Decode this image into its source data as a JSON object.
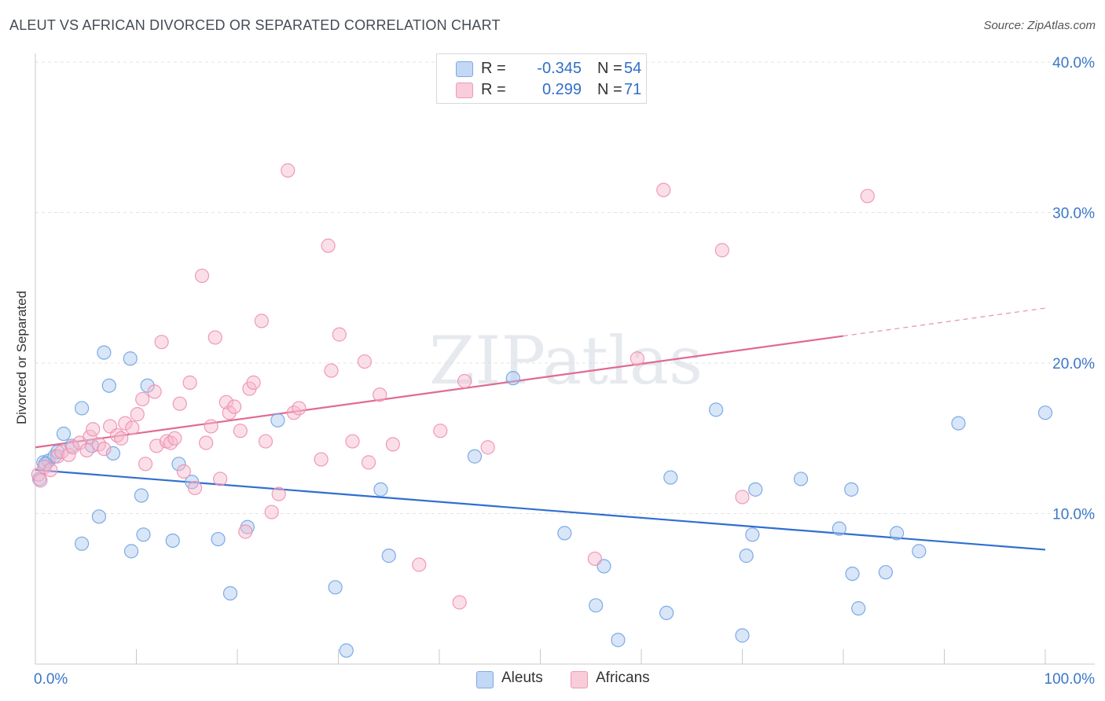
{
  "title": "ALEUT VS AFRICAN DIVORCED OR SEPARATED CORRELATION CHART",
  "source": "Source: ZipAtlas.com",
  "watermark": "ZIPatlas",
  "legend": {
    "rows": [
      {
        "r_label": "R =",
        "r_value": "-0.345",
        "n_label": "N =",
        "n_value": "54",
        "color": "#a9c8f0"
      },
      {
        "r_label": "R =",
        "r_value": "0.299",
        "n_label": "N =",
        "n_value": "71",
        "color": "#f6b8cb"
      }
    ]
  },
  "bottom_legend": [
    {
      "label": "Aleuts",
      "color": "#a9c8f0"
    },
    {
      "label": "Africans",
      "color": "#f6b8cb"
    }
  ],
  "chart_data": {
    "type": "scatter",
    "title": "ALEUT VS AFRICAN DIVORCED OR SEPARATED CORRELATION CHART",
    "xlabel": "",
    "ylabel": "Divorced or Separated",
    "xlim": [
      0,
      100
    ],
    "ylim": [
      0,
      40
    ],
    "x_tick_labels": [
      "0.0%",
      "100.0%"
    ],
    "y_ticks": [
      10,
      20,
      30,
      40
    ],
    "y_tick_labels": [
      "10.0%",
      "20.0%",
      "30.0%",
      "40.0%"
    ],
    "grid": true,
    "legend_position": "top-center",
    "series": [
      {
        "name": "Aleuts",
        "color": "#6fa3e3",
        "fill": "#a9c8f0",
        "trend": {
          "x0": 0,
          "y0": 12.9,
          "x1": 100,
          "y1": 7.6,
          "dashed_from": null
        },
        "points": [
          [
            0.4,
            12.3
          ],
          [
            0.8,
            13.4
          ],
          [
            1.3,
            13.5
          ],
          [
            1.9,
            13.8
          ],
          [
            2.2,
            14.1
          ],
          [
            2.8,
            15.3
          ],
          [
            3.6,
            14.5
          ],
          [
            4.6,
            8.0
          ],
          [
            4.6,
            17.0
          ],
          [
            5.6,
            14.5
          ],
          [
            6.3,
            9.8
          ],
          [
            6.8,
            20.7
          ],
          [
            7.3,
            18.5
          ],
          [
            7.7,
            14.0
          ],
          [
            9.4,
            20.3
          ],
          [
            9.5,
            7.5
          ],
          [
            10.5,
            11.2
          ],
          [
            10.7,
            8.6
          ],
          [
            11.1,
            18.5
          ],
          [
            13.6,
            8.2
          ],
          [
            14.2,
            13.3
          ],
          [
            15.5,
            12.1
          ],
          [
            18.1,
            8.3
          ],
          [
            19.3,
            4.7
          ],
          [
            21.0,
            9.1
          ],
          [
            24.0,
            16.2
          ],
          [
            29.7,
            5.1
          ],
          [
            30.8,
            0.9
          ],
          [
            34.2,
            11.6
          ],
          [
            35.0,
            7.2
          ],
          [
            43.5,
            13.8
          ],
          [
            47.3,
            19.0
          ],
          [
            52.4,
            8.7
          ],
          [
            55.5,
            3.9
          ],
          [
            56.3,
            6.5
          ],
          [
            57.7,
            1.6
          ],
          [
            62.5,
            3.4
          ],
          [
            62.9,
            12.4
          ],
          [
            67.4,
            16.9
          ],
          [
            70.0,
            1.9
          ],
          [
            70.4,
            7.2
          ],
          [
            71.0,
            8.6
          ],
          [
            71.3,
            11.6
          ],
          [
            75.8,
            12.3
          ],
          [
            79.6,
            9.0
          ],
          [
            80.8,
            11.6
          ],
          [
            80.9,
            6.0
          ],
          [
            81.5,
            3.7
          ],
          [
            84.2,
            6.1
          ],
          [
            85.3,
            8.7
          ],
          [
            87.5,
            7.5
          ],
          [
            91.4,
            16.0
          ],
          [
            100.0,
            16.7
          ],
          [
            1.0,
            13.3
          ]
        ]
      },
      {
        "name": "Africans",
        "color": "#f08fae",
        "fill": "#f6b8cb",
        "trend": {
          "x0": 0,
          "y0": 14.4,
          "x1": 80,
          "y1": 21.8,
          "dashed_to": 100
        },
        "points": [
          [
            0.3,
            12.6
          ],
          [
            0.9,
            13.1
          ],
          [
            1.5,
            12.9
          ],
          [
            2.2,
            13.8
          ],
          [
            2.6,
            14.1
          ],
          [
            3.3,
            13.9
          ],
          [
            3.7,
            14.4
          ],
          [
            4.4,
            14.7
          ],
          [
            5.1,
            14.2
          ],
          [
            5.4,
            15.1
          ],
          [
            5.7,
            15.6
          ],
          [
            6.3,
            14.6
          ],
          [
            6.8,
            14.3
          ],
          [
            7.4,
            15.8
          ],
          [
            8.1,
            15.2
          ],
          [
            8.5,
            15.0
          ],
          [
            8.9,
            16.0
          ],
          [
            9.6,
            15.7
          ],
          [
            10.1,
            16.6
          ],
          [
            10.6,
            17.6
          ],
          [
            10.9,
            13.3
          ],
          [
            11.8,
            18.1
          ],
          [
            12.0,
            14.5
          ],
          [
            12.5,
            21.4
          ],
          [
            13.0,
            14.8
          ],
          [
            13.4,
            14.7
          ],
          [
            13.8,
            15.0
          ],
          [
            14.3,
            17.3
          ],
          [
            14.7,
            12.8
          ],
          [
            15.3,
            18.7
          ],
          [
            15.8,
            11.7
          ],
          [
            16.5,
            25.8
          ],
          [
            16.9,
            14.7
          ],
          [
            17.4,
            15.8
          ],
          [
            17.8,
            21.7
          ],
          [
            18.3,
            12.3
          ],
          [
            18.9,
            17.4
          ],
          [
            19.2,
            16.7
          ],
          [
            19.7,
            17.1
          ],
          [
            20.3,
            15.5
          ],
          [
            20.8,
            8.8
          ],
          [
            21.2,
            18.3
          ],
          [
            21.6,
            18.7
          ],
          [
            22.4,
            22.8
          ],
          [
            22.8,
            14.8
          ],
          [
            23.4,
            10.1
          ],
          [
            24.1,
            11.3
          ],
          [
            25.0,
            32.8
          ],
          [
            25.6,
            16.7
          ],
          [
            26.1,
            17.0
          ],
          [
            28.3,
            13.6
          ],
          [
            29.0,
            27.8
          ],
          [
            29.3,
            19.5
          ],
          [
            30.1,
            21.9
          ],
          [
            31.4,
            14.8
          ],
          [
            32.6,
            20.1
          ],
          [
            33.0,
            13.4
          ],
          [
            34.1,
            17.9
          ],
          [
            35.4,
            14.6
          ],
          [
            38.0,
            6.6
          ],
          [
            40.1,
            15.5
          ],
          [
            42.0,
            4.1
          ],
          [
            42.5,
            18.8
          ],
          [
            44.8,
            14.4
          ],
          [
            55.4,
            7.0
          ],
          [
            59.6,
            20.3
          ],
          [
            62.2,
            31.5
          ],
          [
            68.0,
            27.5
          ],
          [
            70.0,
            11.1
          ],
          [
            82.4,
            31.1
          ],
          [
            0.5,
            12.2
          ]
        ]
      }
    ]
  }
}
